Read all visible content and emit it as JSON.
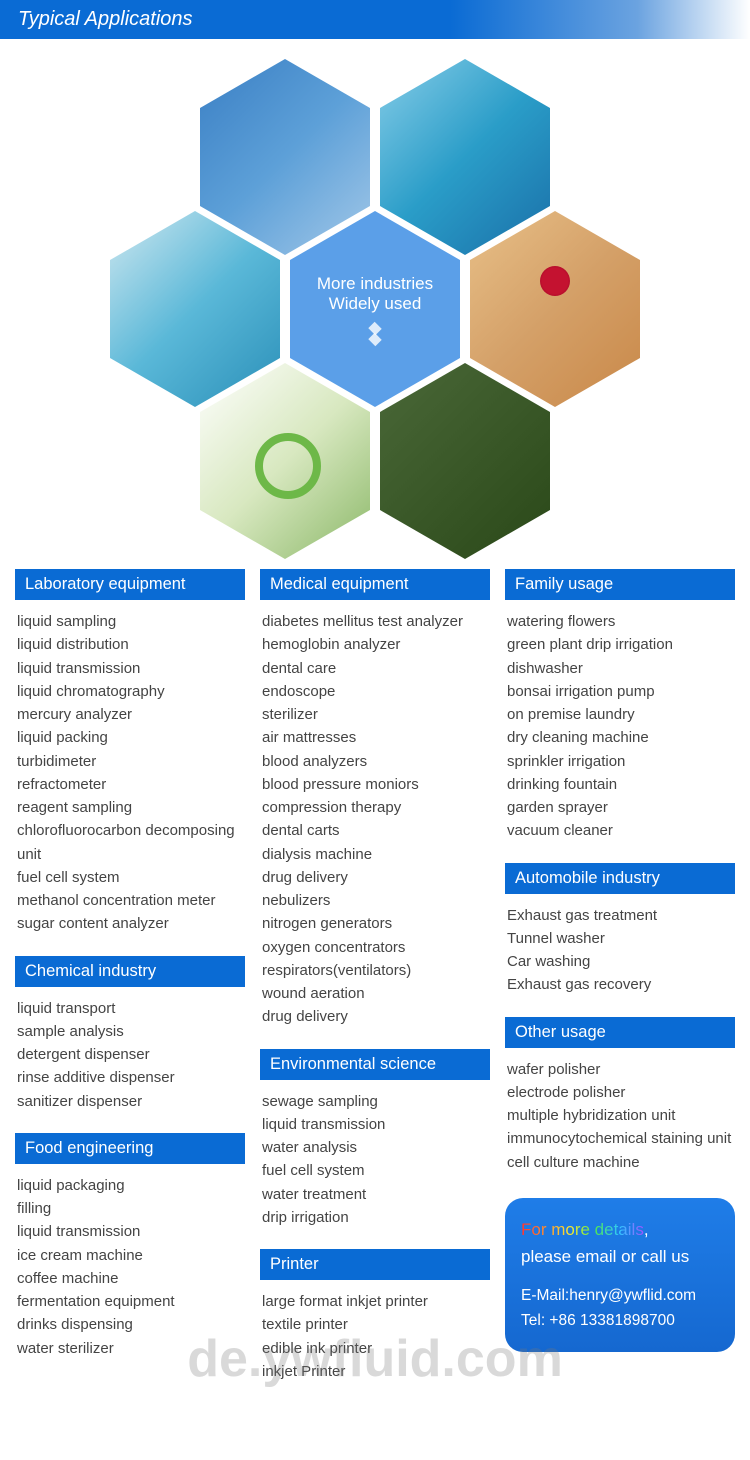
{
  "header": {
    "title": "Typical Applications"
  },
  "hero": {
    "center_line1": "More industries",
    "center_line2": "Widely used"
  },
  "columns": [
    {
      "sections": [
        {
          "title": "Laboratory equipment",
          "items": [
            "liquid sampling",
            "liquid distribution",
            "liquid transmission",
            "liquid chromatography",
            "mercury analyzer",
            "liquid packing",
            "turbidimeter",
            "refractometer",
            "reagent sampling",
            "chlorofluorocarbon decomposing unit",
            "fuel cell system",
            "methanol concentration meter",
            "sugar content analyzer"
          ]
        },
        {
          "title": "Chemical industry",
          "items": [
            "liquid transport",
            "sample analysis",
            "detergent dispenser",
            "rinse additive dispenser",
            "sanitizer dispenser"
          ]
        },
        {
          "title": "Food engineering",
          "items": [
            "liquid packaging",
            "filling",
            "liquid transmission",
            "ice cream machine",
            "coffee machine",
            "fermentation equipment",
            "drinks dispensing",
            "water sterilizer"
          ]
        }
      ]
    },
    {
      "sections": [
        {
          "title": "Medical equipment",
          "items": [
            "diabetes mellitus test analyzer",
            "hemoglobin analyzer",
            "dental care",
            "endoscope",
            "sterilizer",
            "air mattresses",
            "blood analyzers",
            "blood pressure moniors",
            "compression therapy",
            "dental carts",
            "dialysis machine",
            "drug delivery",
            "nebulizers",
            "nitrogen generators",
            "oxygen concentrators",
            "respirators(ventilators)",
            "wound aeration",
            "drug delivery"
          ]
        },
        {
          "title": "Environmental science",
          "items": [
            "sewage sampling",
            "liquid transmission",
            "water analysis",
            "fuel cell system",
            "water treatment",
            "drip irrigation"
          ]
        },
        {
          "title": "Printer",
          "items": [
            "large format inkjet printer",
            "textile printer",
            "edible ink printer",
            "inkjet Printer"
          ]
        }
      ]
    },
    {
      "sections": [
        {
          "title": "Family usage",
          "items": [
            "watering flowers",
            "green plant drip irrigation",
            "dishwasher",
            "bonsai irrigation pump",
            "on premise laundry",
            "dry cleaning machine",
            "sprinkler irrigation",
            "drinking fountain",
            "garden sprayer",
            "vacuum cleaner"
          ]
        },
        {
          "title": "Automobile industry",
          "items": [
            "Exhaust gas treatment",
            "Tunnel washer",
            "Car washing",
            "Exhaust gas recovery"
          ]
        },
        {
          "title": "Other usage",
          "items": [
            "wafer polisher",
            "electrode polisher",
            "multiple hybridization unit",
            "immunocytochemical staining unit",
            "cell culture machine"
          ]
        }
      ],
      "contact": {
        "cta_prefix": "For more details",
        "cta_suffix": "please email or call us",
        "email_label": "E-Mail:",
        "email": "henry@ywflid.com",
        "tel_label": "Tel:",
        "tel": "+86 13381898700"
      }
    }
  ],
  "watermark": "de.ywfluid.com",
  "styles": {
    "primary_blue": "#0a6bd4",
    "hex_center_blue": "#5b9fe8",
    "text_color": "#444444",
    "contact_bg_top": "#1f7de8",
    "contact_bg_bottom": "#1568d0",
    "header_fontsize": 20,
    "section_fontsize": 16.5,
    "body_fontsize": 15
  }
}
